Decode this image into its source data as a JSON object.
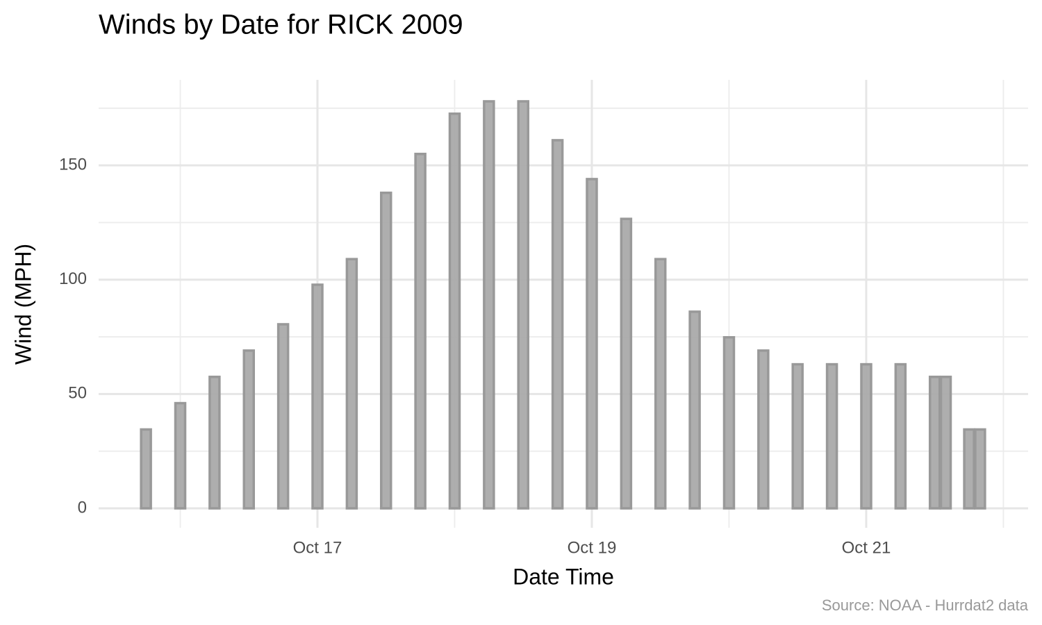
{
  "chart_data": {
    "type": "bar",
    "title": "Winds by Date for RICK 2009",
    "x_label": "Date Time",
    "y_label": "Wind (MPH)",
    "caption": "Source: NOAA - Hurrdat2 data",
    "x": [
      15.75,
      16.0,
      16.25,
      16.5,
      16.75,
      17.0,
      17.25,
      17.5,
      17.75,
      18.0,
      18.25,
      18.5,
      18.75,
      19.0,
      19.25,
      19.5,
      19.75,
      20.0,
      20.25,
      20.5,
      20.75,
      21.0,
      21.25,
      21.5,
      21.58,
      21.75,
      21.83
    ],
    "values": [
      34.5,
      46,
      57.5,
      69,
      80.5,
      97.8,
      109,
      138,
      155,
      172.6,
      178,
      178,
      161,
      144,
      126.6,
      109,
      86,
      74.8,
      69,
      63,
      63,
      63,
      63,
      57.5,
      57.5,
      34.5,
      34.5
    ],
    "color": "#aaaaaa",
    "edge_color": "#999999",
    "xlim": [
      15.405,
      22.18
    ],
    "xticks": [
      {
        "value": 17,
        "label": "Oct 17"
      },
      {
        "value": 19,
        "label": "Oct 19"
      },
      {
        "value": 21,
        "label": "Oct 21"
      }
    ],
    "ylim": [
      -8.5,
      187.4
    ],
    "yticks": [
      0,
      50,
      100,
      150
    ],
    "grid": true
  }
}
